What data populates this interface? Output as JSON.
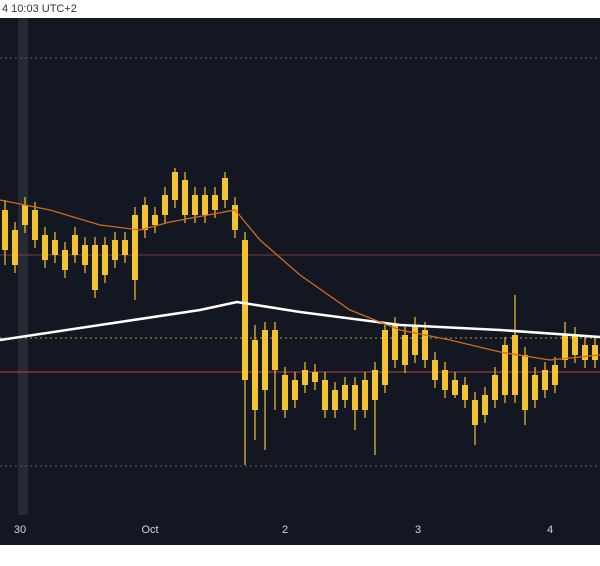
{
  "header": {
    "text": "4 10:03 UTC+2"
  },
  "chart_data": {
    "type": "candlestick",
    "ylim": [
      0,
      100
    ],
    "color": "#f2c230",
    "open": [
      61,
      57,
      58,
      61,
      56,
      55,
      53,
      52,
      54,
      54,
      48,
      51,
      52,
      47,
      57,
      58,
      60,
      63,
      67,
      60,
      64,
      61,
      63,
      62,
      55,
      35,
      25,
      29,
      28,
      23,
      26,
      28.6,
      27,
      21,
      23,
      26,
      21,
      23,
      26,
      31,
      36,
      32,
      37,
      31,
      29,
      27,
      26,
      23,
      20,
      23,
      24,
      24,
      32,
      23,
      25,
      26,
      31,
      36,
      31,
      34
    ],
    "high": [
      63,
      58.6,
      63.6,
      62.6,
      57.6,
      56.6,
      54.6,
      57.6,
      55.6,
      55.6,
      55.6,
      56.6,
      56.6,
      61.6,
      63.6,
      61.6,
      65.6,
      69.4,
      68.6,
      65.6,
      65.6,
      65.6,
      68.6,
      63.6,
      56.6,
      38,
      38.6,
      38.6,
      29.6,
      28.6,
      30.6,
      30.2,
      28.6,
      26.6,
      27.6,
      27.6,
      28.6,
      30.6,
      38.6,
      39.6,
      37.6,
      39.6,
      38.6,
      32.6,
      30.6,
      28.6,
      27.6,
      24.6,
      25.6,
      29.6,
      35.6,
      44,
      33.6,
      29.6,
      30.6,
      31.6,
      38.6,
      37.6,
      35.6,
      35.6
    ],
    "low": [
      50,
      48.4,
      56.4,
      53.4,
      49.4,
      50.4,
      47.4,
      50.4,
      48.4,
      43.4,
      46.4,
      49.4,
      50.4,
      43,
      55.4,
      56.4,
      58.4,
      61.4,
      58.4,
      58.4,
      58.4,
      59.4,
      61.4,
      55.4,
      10,
      15,
      13,
      21,
      19.4,
      21.4,
      24.4,
      25,
      19.4,
      19.4,
      21.4,
      17,
      19.4,
      12,
      24.4,
      29.4,
      28.4,
      30.4,
      29.4,
      25.4,
      23.4,
      23.4,
      21.4,
      14,
      18.4,
      21.4,
      22.4,
      22.4,
      18,
      21.4,
      23.4,
      24.4,
      29.4,
      30.4,
      29.4,
      29.4
    ],
    "close": [
      53,
      50,
      62,
      55,
      51,
      52,
      49,
      56,
      50,
      45,
      54,
      55,
      55,
      60,
      62,
      60,
      64,
      68.6,
      60,
      64,
      60,
      64,
      67.4,
      57,
      27,
      21,
      37,
      37,
      21,
      27,
      29,
      26.6,
      21,
      25,
      26,
      21,
      27,
      29,
      37,
      38,
      30,
      38,
      31,
      27,
      25,
      24,
      23,
      18,
      24,
      28,
      34,
      36,
      21,
      28,
      29,
      30,
      36,
      32,
      34,
      31
    ],
    "xticks": [
      {
        "value": 1.5,
        "label": "30"
      },
      {
        "value": 14.5,
        "label": "Oct"
      },
      {
        "value": 28,
        "label": "2"
      },
      {
        "value": 41.3,
        "label": "3"
      },
      {
        "value": 54.5,
        "label": "4"
      }
    ],
    "lines": [
      {
        "color": "#ffffff",
        "x": [
          -0.5,
          9.5,
          19.5,
          23.2,
          29.5,
          39.5,
          49.5,
          59.5
        ],
        "values": [
          35,
          38,
          41,
          42.6,
          40.6,
          38,
          37,
          35.6
        ]
      },
      {
        "color": "#d2691e",
        "x": [
          -0.5,
          4.5,
          9.5,
          13.5,
          16.5,
          23,
          25.5,
          29.5,
          34.5,
          39.5,
          44.5,
          49.5,
          54.5,
          59.5
        ],
        "values": [
          63,
          61,
          58,
          57,
          58.6,
          61,
          55,
          48,
          41,
          37,
          35,
          32.6,
          31,
          32
        ]
      }
    ],
    "levels": [
      {
        "value": 91.4,
        "color": "#5a5f6e",
        "dash": true
      },
      {
        "value": 9.8,
        "color": "#5a5f6e",
        "dash": true
      },
      {
        "value": 35.4,
        "color": "#b39a2a",
        "dash": true
      },
      {
        "value": 52,
        "color": "#7a3b3b",
        "dash": false
      },
      {
        "value": 28.6,
        "color": "#b0443c",
        "dash": false
      }
    ]
  }
}
